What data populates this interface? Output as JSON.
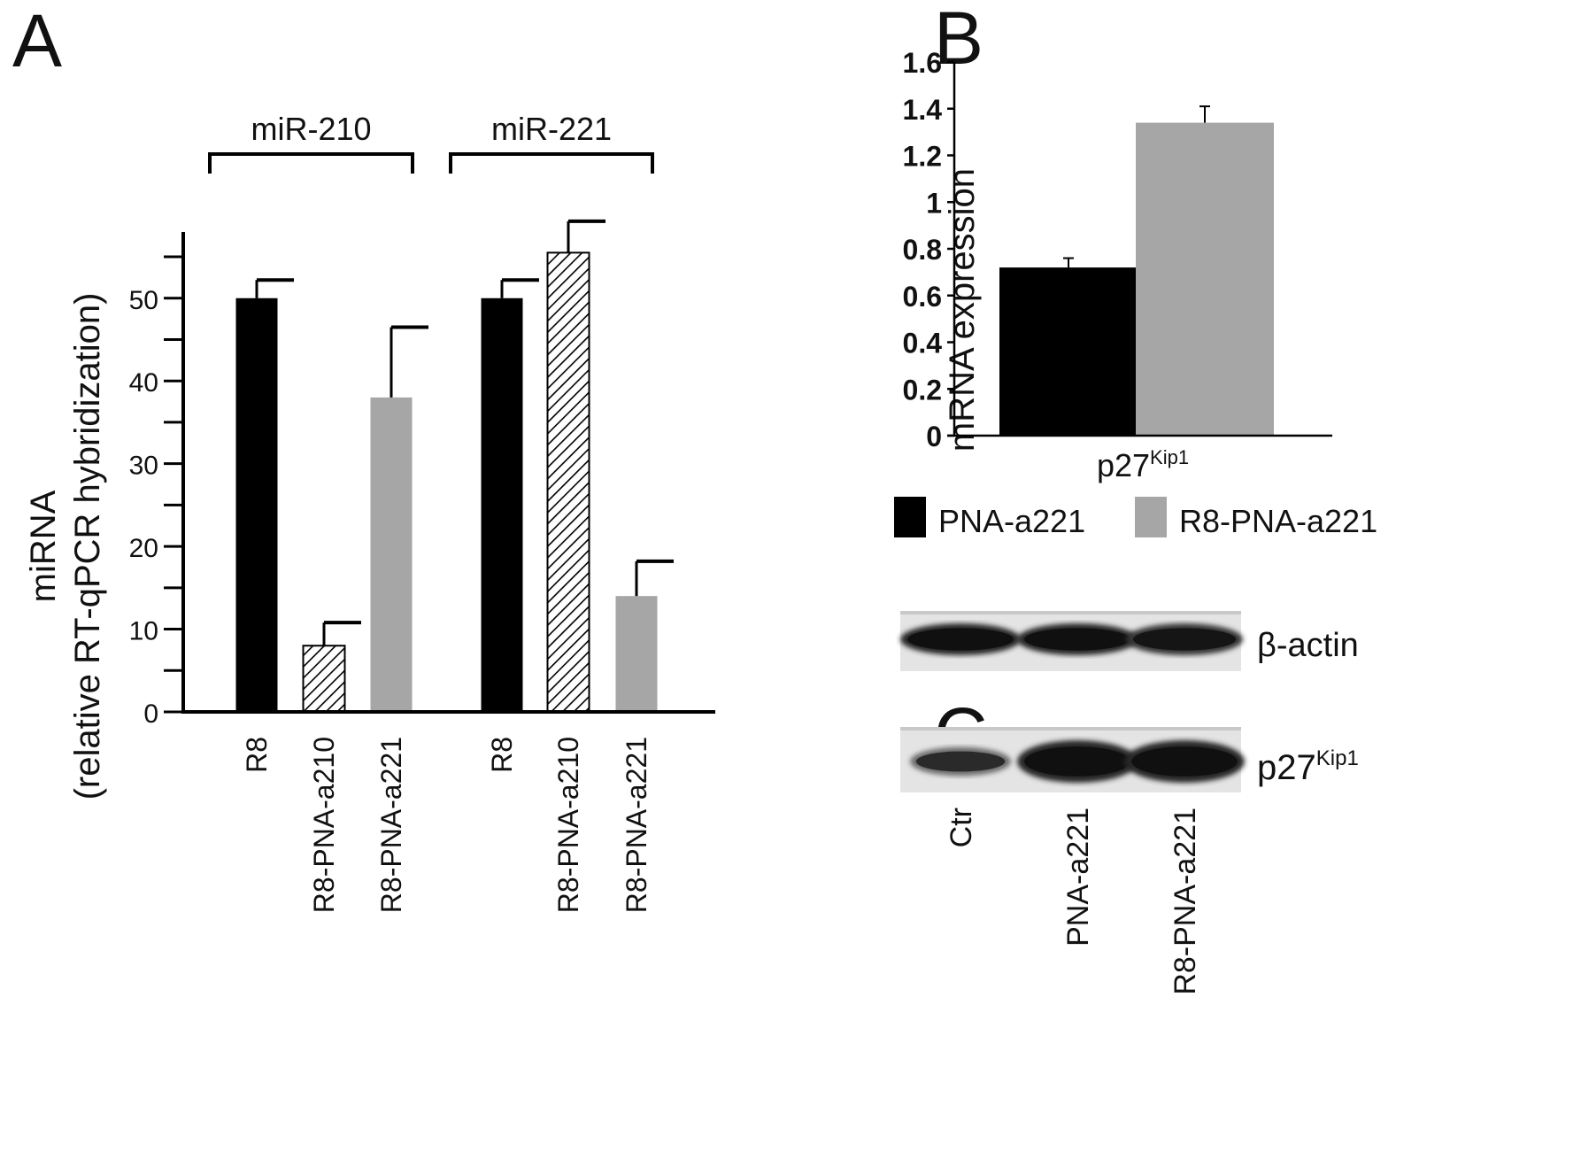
{
  "panels": {
    "a": {
      "letter": "A"
    },
    "b": {
      "letter": "B"
    },
    "c": {
      "letter": "C"
    }
  },
  "chart_data": [
    {
      "panel": "A",
      "type": "bar",
      "ylabel_line1": "miRNA",
      "ylabel_line2": "(relative RT-qPCR hybridization)",
      "ylim": [
        0,
        58
      ],
      "yticks": [
        "0",
        "10",
        "20",
        "30",
        "40",
        "50"
      ],
      "groups": [
        {
          "label": "miR-210",
          "bars": [
            {
              "category": "R8",
              "value": 50,
              "error": 2.2,
              "fill": "solid-black"
            },
            {
              "category": "R8-PNA-a210",
              "value": 8,
              "error": 2.8,
              "fill": "hatched"
            },
            {
              "category": "R8-PNA-a221",
              "value": 38,
              "error": 8.5,
              "fill": "solid-gray"
            }
          ]
        },
        {
          "label": "miR-221",
          "bars": [
            {
              "category": "R8",
              "value": 50,
              "error": 2.2,
              "fill": "solid-black"
            },
            {
              "category": "R8-PNA-a210",
              "value": 55.5,
              "error": 3.8,
              "fill": "hatched"
            },
            {
              "category": "R8-PNA-a221",
              "value": 14,
              "error": 4.2,
              "fill": "solid-gray"
            }
          ]
        }
      ],
      "colors": {
        "black": "#000000",
        "gray": "#a6a6a6"
      }
    },
    {
      "panel": "B",
      "type": "bar",
      "ylabel": "mRNA expression",
      "ylim": [
        0,
        1.6
      ],
      "yticks": [
        "0",
        "0.2",
        "0.4",
        "0.6",
        "0.8",
        "1",
        "1.2",
        "1.4",
        "1.6"
      ],
      "category": {
        "base": "p27",
        "sup": "Kip1"
      },
      "series": [
        {
          "name": "PNA-a221",
          "value": 0.72,
          "error": 0.04,
          "color": "#000000"
        },
        {
          "name": "R8-PNA-a221",
          "value": 1.34,
          "error": 0.07,
          "color": "#a6a6a6"
        }
      ],
      "legend_position": "bottom"
    }
  ],
  "blot": {
    "bands": [
      {
        "label": "β-actin",
        "intensity": [
          1.0,
          1.0,
          0.9
        ]
      },
      {
        "label_base": "p27",
        "label_sup": "Kip1",
        "intensity": [
          0.45,
          1.0,
          1.0
        ]
      }
    ],
    "lanes": [
      "Ctr",
      "PNA-a221",
      "R8-PNA-a221"
    ]
  }
}
